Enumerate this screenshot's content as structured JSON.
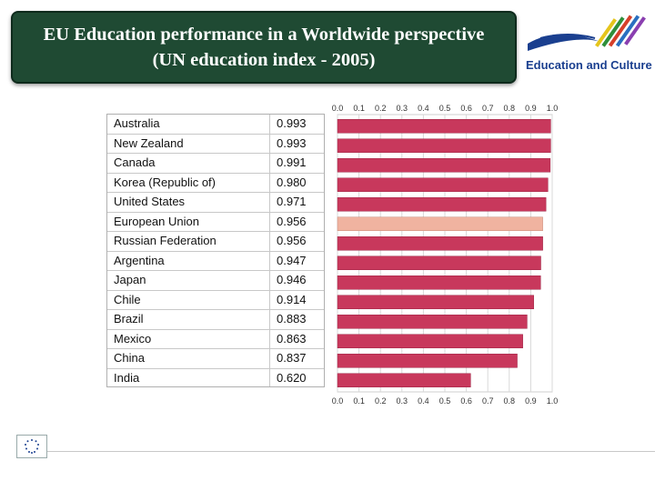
{
  "title": {
    "line1": "EU Education performance in a Worldwide perspective",
    "line2": "(UN education index - 2005)"
  },
  "logo": {
    "text": "Education and Culture"
  },
  "chart_data": {
    "type": "bar",
    "orientation": "horizontal",
    "categories": [
      "Australia",
      "New Zealand",
      "Canada",
      "Korea (Republic of)",
      "United States",
      "European Union",
      "Russian Federation",
      "Argentina",
      "Japan",
      "Chile",
      "Brazil",
      "Mexico",
      "China",
      "India"
    ],
    "values": [
      0.993,
      0.993,
      0.991,
      0.98,
      0.971,
      0.956,
      0.956,
      0.947,
      0.946,
      0.914,
      0.883,
      0.863,
      0.837,
      0.62
    ],
    "value_labels": [
      "0.993",
      "0.993",
      "0.991",
      "0.980",
      "0.971",
      "0.956",
      "0.956",
      "0.947",
      "0.946",
      "0.914",
      "0.883",
      "0.863",
      "0.837",
      "0.620"
    ],
    "xlim": [
      0.0,
      1.0
    ],
    "ticks": [
      "0.0",
      "0.1",
      "0.2",
      "0.3",
      "0.4",
      "0.5",
      "0.6",
      "0.7",
      "0.8",
      "0.9",
      "1.0"
    ],
    "highlight_category": "European Union",
    "colors": {
      "bar": "#c8385c",
      "highlight": "#f0b3a0",
      "grid": "#d8d8d8"
    },
    "grid": true
  }
}
